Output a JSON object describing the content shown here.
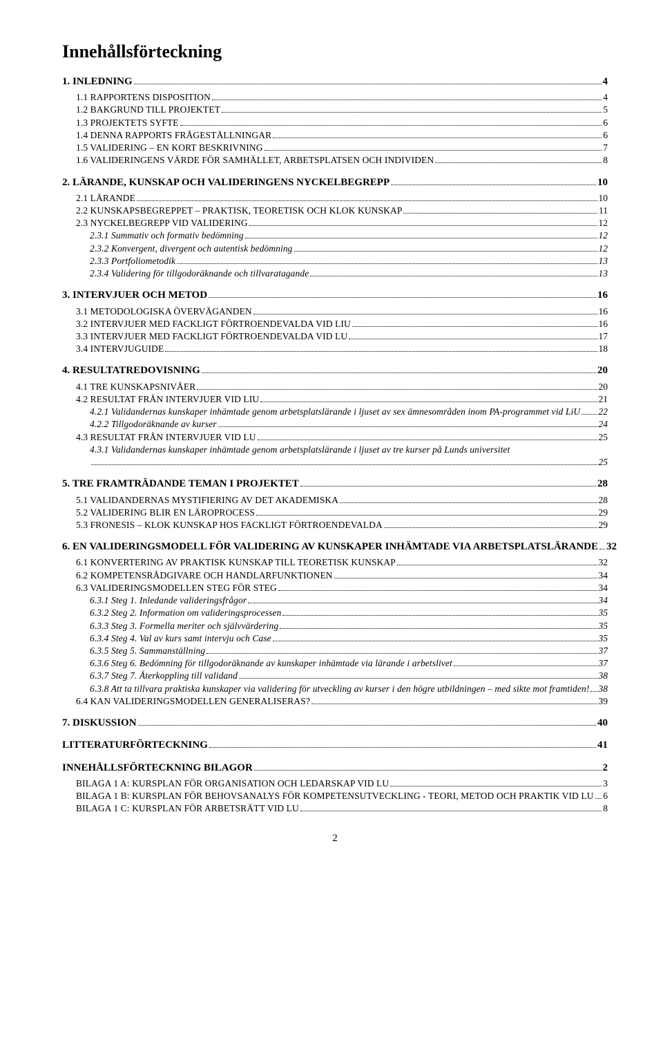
{
  "title": "Innehållsförteckning",
  "page_number": "2",
  "toc": [
    {
      "level": 0,
      "label": "1. INLEDNING",
      "page": "4"
    },
    {
      "level": 1,
      "label": "1.1 RAPPORTENS DISPOSITION",
      "page": "4"
    },
    {
      "level": 1,
      "label": "1.2 BAKGRUND TILL PROJEKTET",
      "page": "5"
    },
    {
      "level": 1,
      "label": "1.3 PROJEKTETS SYFTE",
      "page": "6"
    },
    {
      "level": 1,
      "label": "1.4 DENNA RAPPORTS FRÅGESTÄLLNINGAR",
      "page": "6"
    },
    {
      "level": 1,
      "label": "1.5 VALIDERING – EN KORT BESKRIVNING",
      "page": "7"
    },
    {
      "level": 1,
      "label": "1.6 VALIDERINGENS VÄRDE FÖR SAMHÄLLET, ARBETSPLATSEN OCH INDIVIDEN",
      "page": "8"
    },
    {
      "level": 0,
      "label": "2. LÄRANDE, KUNSKAP OCH VALIDERINGENS NYCKELBEGREPP",
      "page": "10"
    },
    {
      "level": 1,
      "label": "2.1 LÄRANDE",
      "page": "10"
    },
    {
      "level": 1,
      "label": "2.2 KUNSKAPSBEGREPPET – PRAKTISK, TEORETISK OCH KLOK KUNSKAP",
      "page": "11"
    },
    {
      "level": 1,
      "label": "2.3 NYCKELBEGREPP VID VALIDERING",
      "page": "12"
    },
    {
      "level": 2,
      "label": "2.3.1 Summativ och formativ bedömning",
      "page": "12"
    },
    {
      "level": 2,
      "label": "2.3.2 Konvergent, divergent och autentisk bedömning",
      "page": "12"
    },
    {
      "level": 2,
      "label": "2.3.3 Portfoliometodik",
      "page": "13"
    },
    {
      "level": 2,
      "label": "2.3.4 Validering för tillgodoräknande och tillvaratagande",
      "page": "13"
    },
    {
      "level": 0,
      "label": "3. INTERVJUER OCH METOD",
      "page": "16"
    },
    {
      "level": 1,
      "label": "3.1 METODOLOGISKA ÖVERVÄGANDEN",
      "page": "16"
    },
    {
      "level": 1,
      "label": "3.2 INTERVJUER MED FACKLIGT FÖRTROENDEVALDA VID LIU",
      "page": "16"
    },
    {
      "level": 1,
      "label": "3.3 INTERVJUER MED FACKLIGT FÖRTROENDEVALDA VID LU",
      "page": "17"
    },
    {
      "level": 1,
      "label": "3.4 INTERVJUGUIDE",
      "page": "18"
    },
    {
      "level": 0,
      "label": "4. RESULTATREDOVISNING",
      "page": "20"
    },
    {
      "level": 1,
      "label": "4.1 TRE KUNSKAPSNIVÅER",
      "page": "20"
    },
    {
      "level": 1,
      "label": "4.2 RESULTAT FRÅN INTERVJUER VID LIU",
      "page": "21"
    },
    {
      "level": 2,
      "label": "4.2.1 Validandernas kunskaper inhämtade genom arbetsplatslärande i ljuset av sex ämnesområden inom PA-programmet vid LiU",
      "page": "22"
    },
    {
      "level": 2,
      "label": "4.2.2 Tillgodoräknande av kurser",
      "page": "24"
    },
    {
      "level": 1,
      "label": "4.3 RESULTAT FRÅN INTERVJUER VID LU",
      "page": "25"
    },
    {
      "level": 2,
      "label": "4.3.1 Validandernas kunskaper inhämtade genom arbetsplatslärande i ljuset av tre kurser på Lunds universitet\n",
      "page": "25"
    },
    {
      "level": 0,
      "label": "5. TRE FRAMTRÄDANDE TEMAN I PROJEKTET",
      "page": "28"
    },
    {
      "level": 1,
      "label": "5.1 VALIDANDERNAS MYSTIFIERING AV DET AKADEMISKA",
      "page": "28"
    },
    {
      "level": 1,
      "label": "5.2 VALIDERING BLIR EN LÄROPROCESS",
      "page": "29"
    },
    {
      "level": 1,
      "label": "5.3 FRONESIS – KLOK KUNSKAP HOS FACKLIGT FÖRTROENDEVALDA",
      "page": "29"
    },
    {
      "level": 0,
      "label": "6. EN VALIDERINGSMODELL FÖR VALIDERING AV KUNSKAPER INHÄMTADE VIA ARBETSPLATSLÄRANDE",
      "page": "32"
    },
    {
      "level": 1,
      "label": "6.1 KONVERTERING AV PRAKTISK KUNSKAP TILL TEORETISK KUNSKAP",
      "page": "32"
    },
    {
      "level": 1,
      "label": "6.2 KOMPETENSRÅDGIVARE OCH HANDLARFUNKTIONEN",
      "page": "34"
    },
    {
      "level": 1,
      "label": "6.3 VALIDERINGSMODELLEN STEG FÖR STEG",
      "page": "34"
    },
    {
      "level": 2,
      "label": "6.3.1 Steg 1. Inledande valideringsfrågor",
      "page": "34"
    },
    {
      "level": 2,
      "label": "6.3.2 Steg 2. Information om valideringsprocessen",
      "page": "35"
    },
    {
      "level": 2,
      "label": "6.3.3 Steg 3. Formella meriter och självvärdering",
      "page": "35"
    },
    {
      "level": 2,
      "label": "6.3.4 Steg 4. Val av kurs samt intervju och Case",
      "page": "35"
    },
    {
      "level": 2,
      "label": "6.3.5 Steg 5. Sammanställning",
      "page": "37"
    },
    {
      "level": 2,
      "label": "6.3.6 Steg 6. Bedömning för tillgodoräknande av kunskaper inhämtade via lärande i arbetslivet",
      "page": "37"
    },
    {
      "level": 2,
      "label": "6.3.7 Steg 7. Återkoppling till validand",
      "page": "38"
    },
    {
      "level": 2,
      "label": "6.3.8 Att ta tillvara praktiska kunskaper via validering för utveckling av kurser i den högre utbildningen – med sikte mot framtiden!",
      "page": "38"
    },
    {
      "level": 1,
      "label": "6.4 KAN VALIDERINGSMODELLEN GENERALISERAS?",
      "page": "39"
    },
    {
      "level": 0,
      "label": "7. DISKUSSION",
      "page": "40"
    },
    {
      "level": 0,
      "label": "LITTERATURFÖRTECKNING",
      "page": "41"
    },
    {
      "level": 0,
      "label": "INNEHÅLLSFÖRTECKNING BILAGOR",
      "page": "2"
    },
    {
      "level": 1,
      "label": "BILAGA 1 A: KURSPLAN FÖR ORGANISATION OCH LEDARSKAP VID LU",
      "page": "3"
    },
    {
      "level": 1,
      "label": "BILAGA 1 B: KURSPLAN FÖR BEHOVSANALYS FÖR KOMPETENSUTVECKLING - TEORI, METOD OCH PRAKTIK VID LU",
      "page": "6"
    },
    {
      "level": 1,
      "label": "BILAGA 1 C: KURSPLAN FÖR ARBETSRÄTT VID LU",
      "page": "8"
    }
  ]
}
